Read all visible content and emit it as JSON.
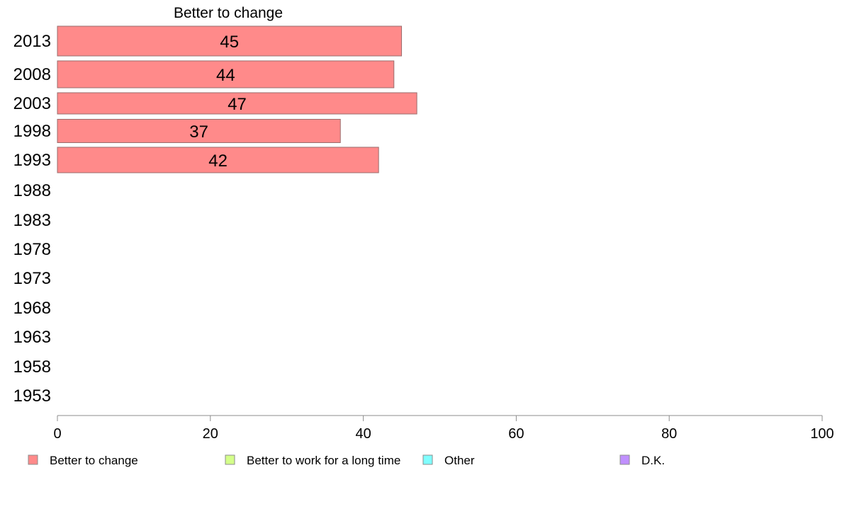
{
  "chart_data": {
    "type": "bar",
    "orientation": "horizontal",
    "categories": [
      "2013",
      "2008",
      "2003",
      "1998",
      "1993",
      "1988",
      "1983",
      "1978",
      "1973",
      "1968",
      "1963",
      "1958",
      "1953"
    ],
    "series": [
      {
        "name": "Better to change",
        "values": [
          45,
          44,
          47,
          37,
          42,
          null,
          null,
          null,
          null,
          null,
          null,
          null,
          null
        ],
        "color": "#ff8a8a"
      },
      {
        "name": "Better to work for a long time",
        "values": [
          null,
          null,
          null,
          null,
          null,
          null,
          null,
          null,
          null,
          null,
          null,
          null,
          null
        ],
        "color": "#d4ff8a"
      },
      {
        "name": "Other",
        "values": [
          null,
          null,
          null,
          null,
          null,
          null,
          null,
          null,
          null,
          null,
          null,
          null,
          null
        ],
        "color": "#80ffff"
      },
      {
        "name": "D.K.",
        "values": [
          null,
          null,
          null,
          null,
          null,
          null,
          null,
          null,
          null,
          null,
          null,
          null,
          null
        ],
        "color": "#c090ff"
      }
    ],
    "column_header": "Better to change",
    "xlim": [
      0,
      100
    ],
    "x_ticks": [
      0,
      20,
      40,
      60,
      80,
      100
    ],
    "grid": false,
    "legend_position": "bottom"
  }
}
